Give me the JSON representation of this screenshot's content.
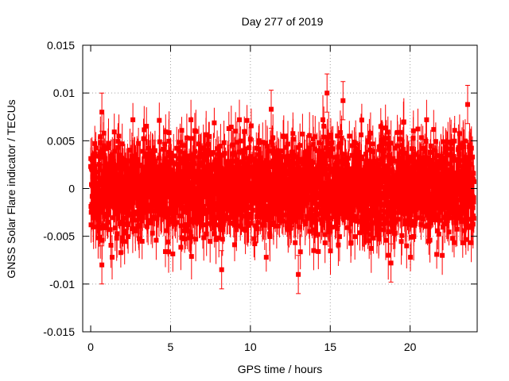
{
  "chart_data": {
    "type": "scatter",
    "title": "Day 277 of 2019",
    "xlabel": "GPS time / hours",
    "ylabel": "GNSS Solar Flare indicator / TECUs",
    "xlim": [
      -0.5,
      24.2
    ],
    "ylim": [
      -0.015,
      0.015
    ],
    "x_ticks": [
      0,
      5,
      10,
      15,
      20
    ],
    "x_tick_labels": [
      "0",
      "5",
      "10",
      "15",
      "20"
    ],
    "y_ticks": [
      0.015,
      0.01,
      0.005,
      0,
      -0.005,
      -0.01,
      -0.015
    ],
    "y_tick_labels": [
      "0.015",
      "0.01",
      "0.005",
      "0",
      "-0.005",
      "-0.01",
      "-0.015"
    ],
    "grid": true,
    "series": [
      {
        "name": "solar flare indicator",
        "color": "#ff0000",
        "marker": "square",
        "error_bars": true,
        "x_range": [
          0,
          24
        ],
        "n_points": 2880,
        "typical_sigma": 0.0025,
        "typical_error": 0.002,
        "notable_points": [
          {
            "x": 14.8,
            "y": 0.01
          },
          {
            "x": 13.0,
            "y": -0.009
          },
          {
            "x": 23.6,
            "y": 0.0088
          },
          {
            "x": 8.2,
            "y": -0.0085
          },
          {
            "x": 0.7,
            "y": -0.008
          },
          {
            "x": 0.7,
            "y": 0.008
          },
          {
            "x": 18.8,
            "y": -0.0078
          },
          {
            "x": 15.8,
            "y": 0.0092
          },
          {
            "x": 11.3,
            "y": 0.0083
          }
        ]
      }
    ]
  }
}
